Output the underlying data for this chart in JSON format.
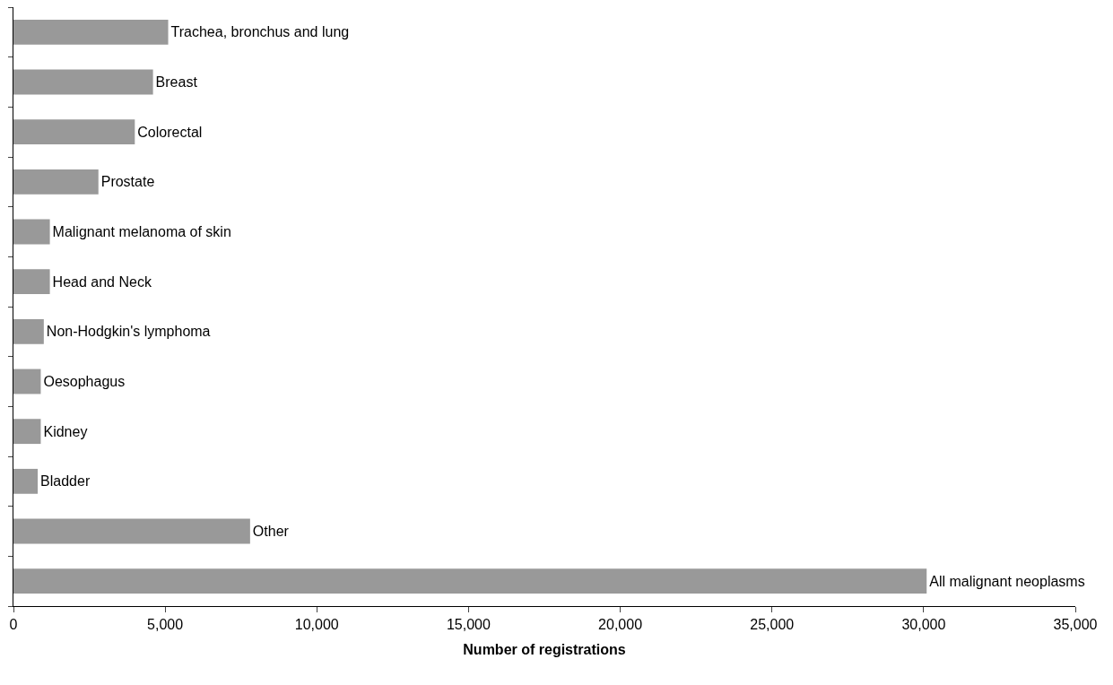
{
  "chart_data": {
    "type": "bar",
    "orientation": "horizontal",
    "xlabel": "Number of registrations",
    "categories": [
      "Trachea, bronchus and lung",
      "Breast",
      "Colorectal",
      "Prostate",
      "Malignant melanoma of skin",
      "Head and Neck",
      "Non-Hodgkin's lymphoma",
      "Oesophagus",
      "Kidney",
      "Bladder",
      "Other",
      "All malignant neoplasms"
    ],
    "values": [
      5100,
      4600,
      4000,
      2800,
      1200,
      1200,
      1000,
      900,
      900,
      800,
      7800,
      30100
    ],
    "color": "#999999",
    "xlim": [
      0,
      35000
    ],
    "xticks": [
      {
        "value": 0,
        "label": "0"
      },
      {
        "value": 5000,
        "label": "5,000"
      },
      {
        "value": 10000,
        "label": "10,000"
      },
      {
        "value": 15000,
        "label": "15,000"
      },
      {
        "value": 20000,
        "label": "20,000"
      },
      {
        "value": 25000,
        "label": "25,000"
      },
      {
        "value": 30000,
        "label": "30,000"
      },
      {
        "value": 35000,
        "label": "35,000"
      }
    ],
    "tick_labels": "x",
    "grid": false
  }
}
